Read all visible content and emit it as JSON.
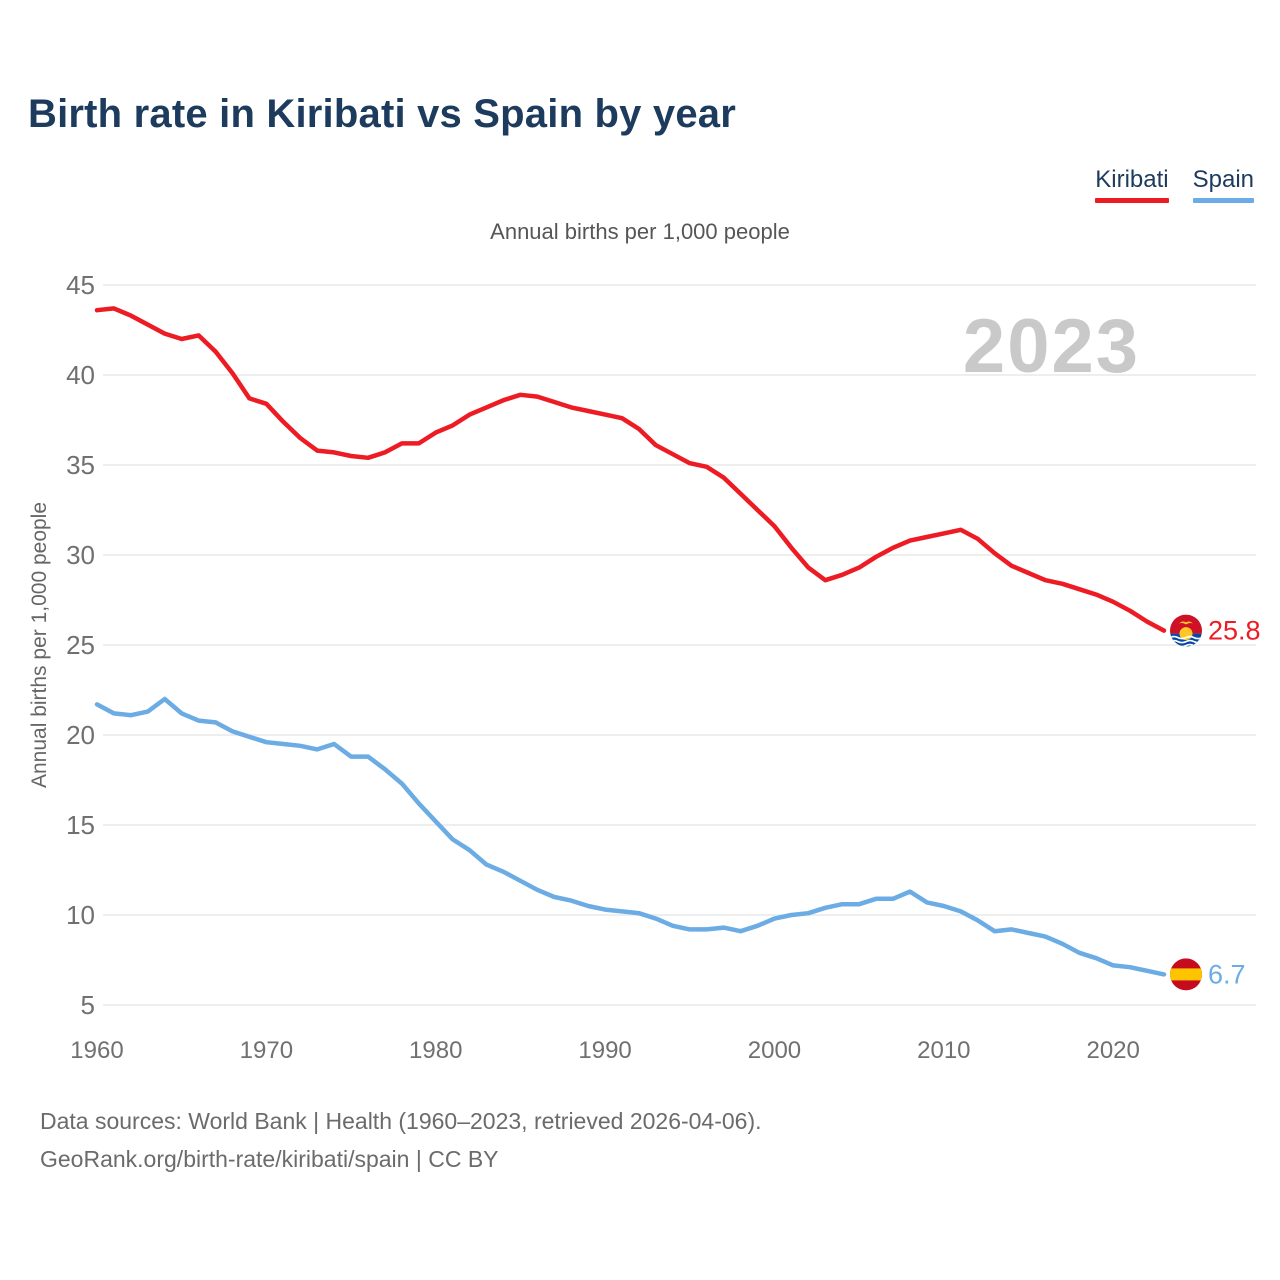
{
  "header": {
    "title": "Birth rate in Kiribati vs Spain by year",
    "subtitle": "Annual births per 1,000 people"
  },
  "legend": [
    {
      "label": "Kiribati",
      "color": "#ed1c24"
    },
    {
      "label": "Spain",
      "color": "#6cace4"
    }
  ],
  "watermark": "2023",
  "chart_data": {
    "type": "line",
    "title": "Annual births per 1,000 people",
    "ylabel": "Annual births per 1,000 people",
    "xlabel": "",
    "grid": "horizontal",
    "legend_position": "top-right",
    "ylim": [
      5,
      45
    ],
    "yticks": [
      5,
      10,
      15,
      20,
      25,
      30,
      35,
      40,
      45
    ],
    "xticks": [
      1960,
      1970,
      1980,
      1990,
      2000,
      2010,
      2020
    ],
    "x": [
      1960,
      1961,
      1962,
      1963,
      1964,
      1965,
      1966,
      1967,
      1968,
      1969,
      1970,
      1971,
      1972,
      1973,
      1974,
      1975,
      1976,
      1977,
      1978,
      1979,
      1980,
      1981,
      1982,
      1983,
      1984,
      1985,
      1986,
      1987,
      1988,
      1989,
      1990,
      1991,
      1992,
      1993,
      1994,
      1995,
      1996,
      1997,
      1998,
      1999,
      2000,
      2001,
      2002,
      2003,
      2004,
      2005,
      2006,
      2007,
      2008,
      2009,
      2010,
      2011,
      2012,
      2013,
      2014,
      2015,
      2016,
      2017,
      2018,
      2019,
      2020,
      2021,
      2022,
      2023
    ],
    "series": [
      {
        "name": "Kiribati",
        "color": "#ed1c24",
        "end_label": "25.8",
        "values": [
          43.6,
          43.7,
          43.3,
          42.8,
          42.3,
          42.0,
          42.2,
          41.3,
          40.1,
          38.7,
          38.4,
          37.4,
          36.5,
          35.8,
          35.7,
          35.5,
          35.4,
          35.7,
          36.2,
          36.2,
          36.8,
          37.2,
          37.8,
          38.2,
          38.6,
          38.9,
          38.8,
          38.5,
          38.2,
          38.0,
          37.8,
          37.6,
          37.0,
          36.1,
          35.6,
          35.1,
          34.9,
          34.3,
          33.4,
          32.5,
          31.6,
          30.4,
          29.3,
          28.6,
          28.9,
          29.3,
          29.9,
          30.4,
          30.8,
          31.0,
          31.2,
          31.4,
          30.9,
          30.1,
          29.4,
          29.0,
          28.6,
          28.4,
          28.1,
          27.8,
          27.4,
          26.9,
          26.3,
          25.8
        ]
      },
      {
        "name": "Spain",
        "color": "#6cace4",
        "end_label": "6.7",
        "values": [
          21.7,
          21.2,
          21.1,
          21.3,
          22.0,
          21.2,
          20.8,
          20.7,
          20.2,
          19.9,
          19.6,
          19.5,
          19.4,
          19.2,
          19.5,
          18.8,
          18.8,
          18.1,
          17.3,
          16.2,
          15.2,
          14.2,
          13.6,
          12.8,
          12.4,
          11.9,
          11.4,
          11.0,
          10.8,
          10.5,
          10.3,
          10.2,
          10.1,
          9.8,
          9.4,
          9.2,
          9.2,
          9.3,
          9.1,
          9.4,
          9.8,
          10.0,
          10.1,
          10.4,
          10.6,
          10.6,
          10.9,
          10.9,
          11.3,
          10.7,
          10.5,
          10.2,
          9.7,
          9.1,
          9.2,
          9.0,
          8.8,
          8.4,
          7.9,
          7.6,
          7.2,
          7.1,
          6.9,
          6.7
        ]
      }
    ]
  },
  "footer": {
    "line1": "Data sources: World Bank | Health (1960–2023, retrieved 2026-04-06).",
    "line2": "GeoRank.org/birth-rate/kiribati/spain | CC BY"
  }
}
